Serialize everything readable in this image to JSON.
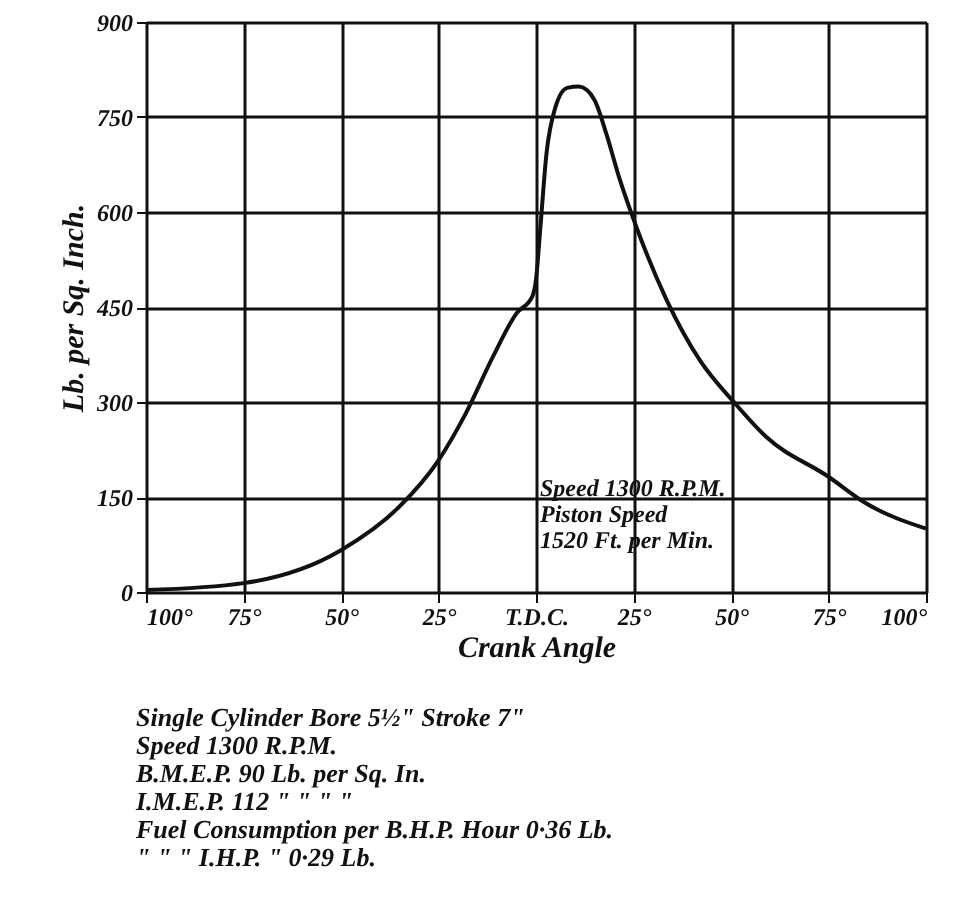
{
  "chart_data": {
    "type": "line",
    "xlabel": "Crank Angle",
    "ylabel": "Lb. per Sq. Inch.",
    "x": [
      -100,
      -75,
      -50,
      -35,
      -25,
      -18,
      -11,
      -5,
      -1,
      0,
      1,
      2.7,
      5,
      8,
      11,
      15,
      18,
      21.5,
      26,
      33.5,
      42,
      51,
      59,
      75,
      84.6,
      100
    ],
    "series": [
      {
        "color": "#111111",
        "values": [
          3,
          14,
          66,
          135,
          208,
          282,
          372,
          440,
          466,
          493,
          566,
          693,
          766,
          796,
          798,
          777,
          724,
          651,
          572,
          461,
          366,
          298,
          245,
          182,
          140,
          100
        ]
      }
    ],
    "xlim": [
      -100,
      100
    ],
    "xticks": [
      {
        "value": -100,
        "label": "100°"
      },
      {
        "value": -75,
        "label": "75°"
      },
      {
        "value": -50,
        "label": "50°"
      },
      {
        "value": -25,
        "label": "25°"
      },
      {
        "value": 0,
        "label": "T.D.C."
      },
      {
        "value": 25,
        "label": "25°"
      },
      {
        "value": 50,
        "label": "50°"
      },
      {
        "value": 75,
        "label": "75°"
      },
      {
        "value": 100,
        "label": "100°"
      }
    ],
    "ylim": [
      0,
      900
    ],
    "yticks": [
      0,
      150,
      300,
      450,
      600,
      750,
      900
    ],
    "grid": true,
    "marker": "none",
    "line_style": "solid",
    "annotations": [
      "Speed 1300 R.P.M.\nPiston Speed\n1520 Ft. per Min.",
      "Single Cylinder Bore 5½\" Stroke 7\"\nSpeed 1300 R.P.M.\nB.M.E.P. 90 Lb. per Sq. In.\nI.M.E.P. 112 \" \" \" \"\nFuel Consumption per B.H.P. Hour 0·36 Lb.\n\" \" \" I.H.P. \" 0·29 Lb."
    ]
  }
}
